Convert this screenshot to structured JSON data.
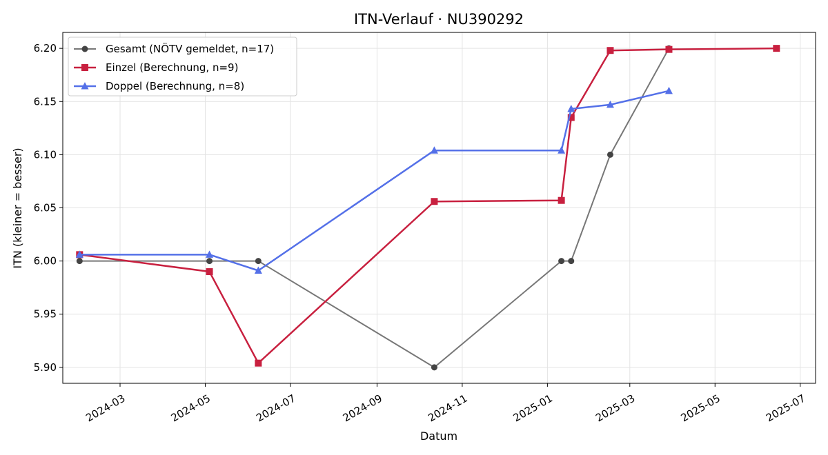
{
  "chart_data": {
    "type": "line",
    "title": "ITN-Verlauf · NU390292",
    "xlabel": "Datum",
    "ylabel": "ITN  (kleiner = besser)",
    "xlim": [
      "2024-01-20",
      "2025-07-12"
    ],
    "ylim": [
      5.885,
      6.215
    ],
    "x_ticks": [
      "2024-03-01",
      "2024-05-01",
      "2024-07-01",
      "2024-09-01",
      "2024-11-01",
      "2025-01-01",
      "2025-03-01",
      "2025-05-01",
      "2025-07-01"
    ],
    "x_tick_labels": [
      "2024-03",
      "2024-05",
      "2024-07",
      "2024-09",
      "2024-11",
      "2025-01",
      "2025-03",
      "2025-05",
      "2025-07"
    ],
    "y_ticks": [
      5.9,
      5.95,
      6.0,
      6.05,
      6.1,
      6.15,
      6.2
    ],
    "y_tick_labels": [
      "5.90",
      "5.95",
      "6.00",
      "6.05",
      "6.10",
      "6.15",
      "6.20"
    ],
    "grid": true,
    "legend_position": "top-left",
    "series": [
      {
        "name": "Gesamt (NÖTV gemeldet, n=17)",
        "color": "#777777",
        "marker": "circle",
        "points": [
          {
            "x": "2024-02-01",
            "y": 6.0
          },
          {
            "x": "2024-05-04",
            "y": 6.0
          },
          {
            "x": "2024-06-08",
            "y": 6.0
          },
          {
            "x": "2024-10-12",
            "y": 5.9
          },
          {
            "x": "2025-01-11",
            "y": 6.0
          },
          {
            "x": "2025-01-18",
            "y": 6.0
          },
          {
            "x": "2025-02-15",
            "y": 6.1
          },
          {
            "x": "2025-03-29",
            "y": 6.2
          }
        ]
      },
      {
        "name": "Einzel (Berechnung, n=9)",
        "color": "#c8203f",
        "marker": "square",
        "points": [
          {
            "x": "2024-02-01",
            "y": 6.006
          },
          {
            "x": "2024-05-04",
            "y": 5.99
          },
          {
            "x": "2024-06-08",
            "y": 5.904
          },
          {
            "x": "2024-10-12",
            "y": 6.056
          },
          {
            "x": "2025-01-11",
            "y": 6.057
          },
          {
            "x": "2025-01-18",
            "y": 6.135
          },
          {
            "x": "2025-02-15",
            "y": 6.198
          },
          {
            "x": "2025-03-29",
            "y": 6.199
          },
          {
            "x": "2025-06-14",
            "y": 6.2
          }
        ]
      },
      {
        "name": "Doppel (Berechnung, n=8)",
        "color": "#5470e8",
        "marker": "triangle",
        "points": [
          {
            "x": "2024-02-01",
            "y": 6.006
          },
          {
            "x": "2024-05-04",
            "y": 6.006
          },
          {
            "x": "2024-06-08",
            "y": 5.991
          },
          {
            "x": "2024-10-12",
            "y": 6.104
          },
          {
            "x": "2025-01-11",
            "y": 6.104
          },
          {
            "x": "2025-01-18",
            "y": 6.143
          },
          {
            "x": "2025-02-15",
            "y": 6.147
          },
          {
            "x": "2025-03-29",
            "y": 6.16
          }
        ]
      }
    ]
  }
}
